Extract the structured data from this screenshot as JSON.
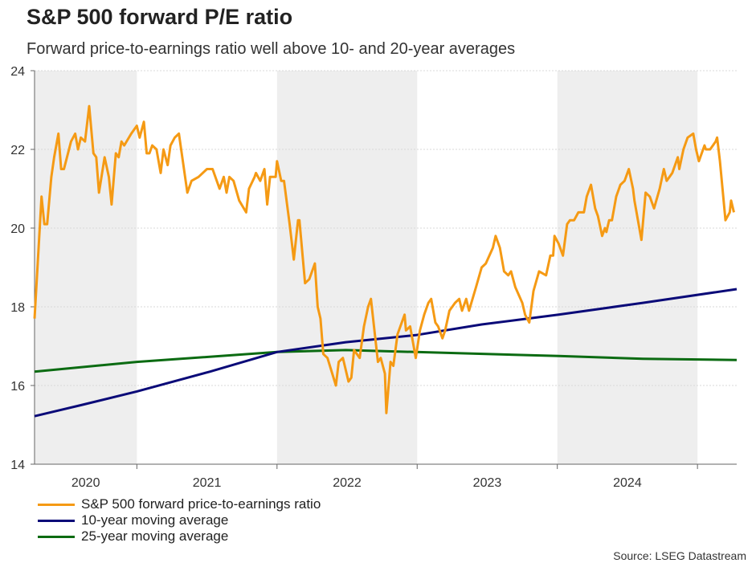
{
  "chart_data": {
    "type": "line",
    "title": "S&P 500 forward P/E ratio",
    "subtitle": "Forward price-to-earnings ratio well above 10- and 20-year averages",
    "xlabel": "",
    "ylabel": "",
    "xlim": [
      2020.27,
      2025.28
    ],
    "ylim": [
      14,
      24
    ],
    "yticks": [
      14,
      16,
      18,
      20,
      22,
      24
    ],
    "ytick_labels": [
      "14",
      "16",
      "18",
      "20",
      "22",
      "24"
    ],
    "year_labels": [
      {
        "label": "2020",
        "start": 2020.27,
        "end": 2021.0,
        "shaded": true
      },
      {
        "label": "2021",
        "start": 2021.0,
        "end": 2022.0,
        "shaded": false
      },
      {
        "label": "2022",
        "start": 2022.0,
        "end": 2023.0,
        "shaded": true
      },
      {
        "label": "2023",
        "start": 2023.0,
        "end": 2024.0,
        "shaded": false
      },
      {
        "label": "2024",
        "start": 2024.0,
        "end": 2025.0,
        "shaded": true
      }
    ],
    "xticks": [
      2021,
      2022,
      2023,
      2024,
      2025
    ],
    "grid": true,
    "legend_position": "bottom-left",
    "series": [
      {
        "name": "S&P 500 forward price-to-earnings ratio",
        "color": "#f59a14",
        "x": [
          2020.27,
          2020.32,
          2020.34,
          2020.36,
          2020.39,
          2020.41,
          2020.44,
          2020.46,
          2020.48,
          2020.53,
          2020.56,
          2020.58,
          2020.6,
          2020.63,
          2020.66,
          2020.69,
          2020.71,
          2020.73,
          2020.77,
          2020.8,
          2020.82,
          2020.85,
          2020.87,
          2020.89,
          2020.91,
          2020.96,
          2021.0,
          2021.02,
          2021.05,
          2021.07,
          2021.09,
          2021.11,
          2021.14,
          2021.17,
          2021.19,
          2021.22,
          2021.24,
          2021.27,
          2021.3,
          2021.36,
          2021.39,
          2021.44,
          2021.5,
          2021.54,
          2021.59,
          2021.62,
          2021.64,
          2021.66,
          2021.69,
          2021.73,
          2021.78,
          2021.8,
          2021.84,
          2021.85,
          2021.88,
          2021.91,
          2021.93,
          2021.95,
          2021.99,
          2022.0,
          2022.03,
          2022.05,
          2022.09,
          2022.12,
          2022.15,
          2022.16,
          2022.2,
          2022.23,
          2022.27,
          2022.29,
          2022.31,
          2022.33,
          2022.36,
          2022.42,
          2022.44,
          2022.47,
          2022.51,
          2022.53,
          2022.55,
          2022.59,
          2022.62,
          2022.65,
          2022.67,
          2022.72,
          2022.74,
          2022.77,
          2022.78,
          2022.81,
          2022.83,
          2022.86,
          2022.88,
          2022.91,
          2022.92,
          2022.95,
          2022.97,
          2022.99,
          2023.02,
          2023.05,
          2023.08,
          2023.1,
          2023.13,
          2023.15,
          2023.18,
          2023.2,
          2023.23,
          2023.27,
          2023.3,
          2023.32,
          2023.35,
          2023.37,
          2023.42,
          2023.46,
          2023.49,
          2023.54,
          2023.56,
          2023.59,
          2023.62,
          2023.65,
          2023.67,
          2023.7,
          2023.75,
          2023.77,
          2023.8,
          2023.83,
          2023.87,
          2023.92,
          2023.95,
          2023.97,
          2023.98,
          2024.01,
          2024.04,
          2024.07,
          2024.09,
          2024.12,
          2024.15,
          2024.19,
          2024.21,
          2024.24,
          2024.27,
          2024.29,
          2024.32,
          2024.34,
          2024.35,
          2024.37,
          2024.39,
          2024.42,
          2024.45,
          2024.48,
          2024.51,
          2024.54,
          2024.55,
          2024.6,
          2024.63,
          2024.66,
          2024.69,
          2024.73,
          2024.76,
          2024.78,
          2024.82,
          2024.86,
          2024.87,
          2024.9,
          2024.93,
          2024.97,
          2024.99,
          2025.01,
          2025.05,
          2025.06,
          2025.09,
          2025.13,
          2025.14,
          2025.16,
          2025.2,
          2025.23,
          2025.24,
          2025.26
        ],
        "y": [
          17.7,
          20.8,
          20.1,
          20.1,
          21.3,
          21.8,
          22.4,
          21.5,
          21.5,
          22.2,
          22.4,
          22.0,
          22.3,
          22.2,
          23.1,
          21.9,
          21.8,
          20.9,
          21.8,
          21.3,
          20.6,
          21.9,
          21.8,
          22.2,
          22.1,
          22.4,
          22.6,
          22.3,
          22.7,
          21.9,
          21.9,
          22.1,
          22.0,
          21.4,
          22.0,
          21.6,
          22.1,
          22.3,
          22.4,
          20.9,
          21.2,
          21.3,
          21.5,
          21.5,
          21.0,
          21.3,
          20.9,
          21.3,
          21.2,
          20.7,
          20.4,
          21.0,
          21.3,
          21.4,
          21.2,
          21.5,
          20.6,
          21.3,
          21.3,
          21.7,
          21.2,
          21.2,
          20.1,
          19.2,
          20.2,
          20.2,
          18.6,
          18.7,
          19.1,
          18.0,
          17.7,
          16.8,
          16.7,
          16.0,
          16.6,
          16.7,
          16.1,
          16.2,
          16.9,
          16.7,
          17.5,
          18.0,
          18.2,
          16.6,
          16.7,
          16.3,
          15.3,
          16.6,
          16.5,
          17.3,
          17.5,
          17.8,
          17.4,
          17.5,
          17.1,
          16.7,
          17.4,
          17.8,
          18.1,
          18.2,
          17.6,
          17.5,
          17.2,
          17.4,
          17.9,
          18.1,
          18.2,
          17.9,
          18.2,
          17.9,
          18.5,
          19.0,
          19.1,
          19.5,
          19.8,
          19.5,
          18.9,
          18.8,
          18.9,
          18.5,
          18.1,
          17.8,
          17.6,
          18.4,
          18.9,
          18.8,
          19.3,
          19.3,
          19.8,
          19.6,
          19.3,
          20.1,
          20.2,
          20.2,
          20.4,
          20.4,
          20.8,
          21.1,
          20.5,
          20.3,
          19.8,
          20.0,
          19.9,
          20.2,
          20.2,
          20.8,
          21.1,
          21.2,
          21.5,
          21.0,
          20.7,
          19.7,
          20.9,
          20.8,
          20.5,
          21.0,
          21.5,
          21.2,
          21.4,
          21.8,
          21.5,
          22.0,
          22.3,
          22.4,
          22.0,
          21.7,
          22.1,
          22.0,
          22.0,
          22.2,
          22.3,
          21.7,
          20.2,
          20.4,
          20.7,
          20.4
        ]
      },
      {
        "name": "10-year moving average",
        "color": "#0a0a78",
        "x": [
          2020.27,
          2020.6,
          2021.0,
          2021.52,
          2022.0,
          2022.49,
          2022.99,
          2023.46,
          2024.01,
          2024.61,
          2025.28
        ],
        "y": [
          15.22,
          15.5,
          15.85,
          16.35,
          16.85,
          17.1,
          17.28,
          17.55,
          17.8,
          18.1,
          18.45
        ]
      },
      {
        "name": "25-year moving average",
        "color": "#0b6b12",
        "x": [
          2020.27,
          2021.0,
          2022.0,
          2022.49,
          2022.99,
          2024.01,
          2024.61,
          2025.28
        ],
        "y": [
          16.35,
          16.6,
          16.85,
          16.9,
          16.85,
          16.75,
          16.68,
          16.65
        ]
      }
    ],
    "source": "Source: LSEG Datastream"
  }
}
